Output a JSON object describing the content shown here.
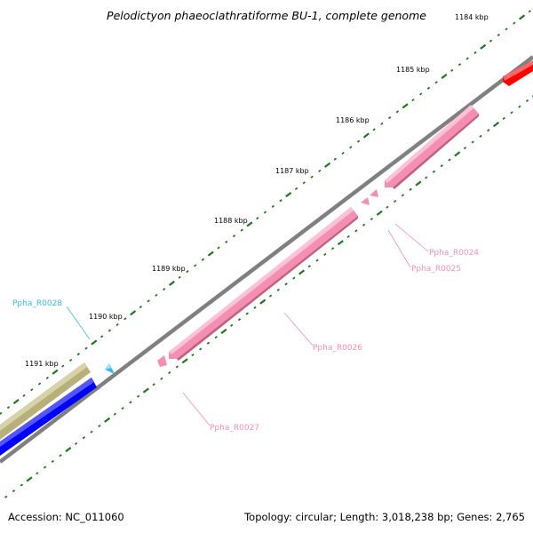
{
  "title": "Pelodictyon phaeoclathratiforme BU-1, complete genome",
  "footer": {
    "accession": "Accession: NC_011060",
    "summary": "Topology: circular; Length: 3,018,238 bp; Genes: 2,765"
  },
  "ticks": [
    {
      "label": "1184 kbp"
    },
    {
      "label": "1185 kbp"
    },
    {
      "label": "1186 kbp"
    },
    {
      "label": "1187 kbp"
    },
    {
      "label": "1188 kbp"
    },
    {
      "label": "1189 kbp"
    },
    {
      "label": "1190 kbp"
    },
    {
      "label": "1191 kbp"
    }
  ],
  "genes": [
    {
      "label": "Ppha_R0024",
      "color": "#f48fb1"
    },
    {
      "label": "Ppha_R0025",
      "color": "#f48fb1"
    },
    {
      "label": "Ppha_R0026",
      "color": "#f48fb1"
    },
    {
      "label": "Ppha_R0027",
      "color": "#f48fb1"
    },
    {
      "label": "Ppha_R0028",
      "color": "#33bbee"
    }
  ],
  "colors": {
    "backbone": "#808080",
    "tick_marks": "#1a7a1a",
    "rrna": "#f48fb1",
    "trna": "#33bbee",
    "cds_plus": "#ff0000",
    "cds_minus": "#0000ff",
    "other": "#b8b07a"
  }
}
